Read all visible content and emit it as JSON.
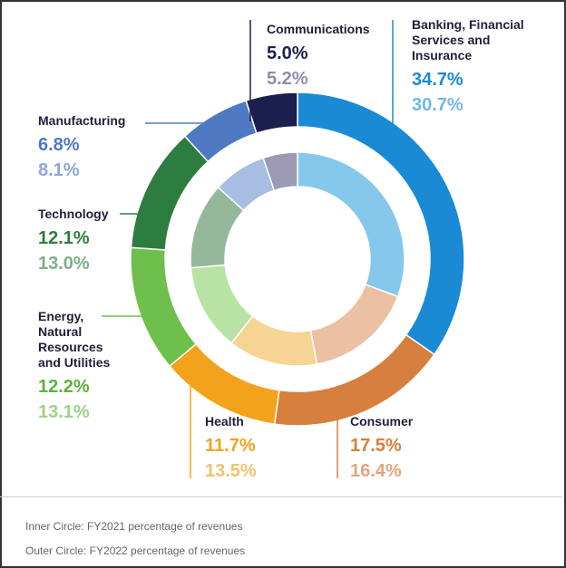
{
  "chart_data": {
    "type": "donut",
    "title": "",
    "inner_ring": "FY2021",
    "outer_ring": "FY2022",
    "categories": [
      "Banking, Financial Services and Insurance",
      "Consumer",
      "Health",
      "Energy, Natural Resources and Utilities",
      "Technology",
      "Manufacturing",
      "Communications"
    ],
    "series": [
      {
        "name": "FY2022",
        "ring": "outer",
        "values": [
          34.7,
          17.5,
          11.7,
          12.2,
          12.1,
          6.8,
          5.0
        ]
      },
      {
        "name": "FY2021",
        "ring": "inner",
        "values": [
          30.7,
          16.4,
          13.5,
          13.1,
          13.0,
          8.1,
          5.2
        ]
      }
    ],
    "value_labels_outer": [
      "34.7%",
      "17.5%",
      "11.7%",
      "12.2%",
      "12.1%",
      "6.8%",
      "5.0%"
    ],
    "value_labels_inner": [
      "30.7%",
      "16.4%",
      "13.5%",
      "13.1%",
      "13.0%",
      "8.1%",
      "5.2%"
    ],
    "colors_outer": [
      "#1a8ad4",
      "#d77f3c",
      "#f3a21c",
      "#6ebf4b",
      "#2e7d40",
      "#4f78c2",
      "#1c1f4d"
    ],
    "colors_inner": [
      "#86c8ec",
      "#ebc0a3",
      "#f6d494",
      "#b9e3a4",
      "#95b89b",
      "#a8bde2",
      "#9b99b3"
    ],
    "category_label_lines": [
      [
        "Banking, Financial",
        "Services and",
        "Insurance"
      ],
      [
        "Consumer"
      ],
      [
        "Health"
      ],
      [
        "Energy,",
        "Natural",
        "Resources",
        "and Utilities"
      ],
      [
        "Technology"
      ],
      [
        "Manufacturing"
      ],
      [
        "Communications"
      ]
    ]
  },
  "footnotes": {
    "inner": "Inner Circle: FY2021 percentage of revenues",
    "outer": "Outer Circle: FY2022 percentage of revenues"
  }
}
